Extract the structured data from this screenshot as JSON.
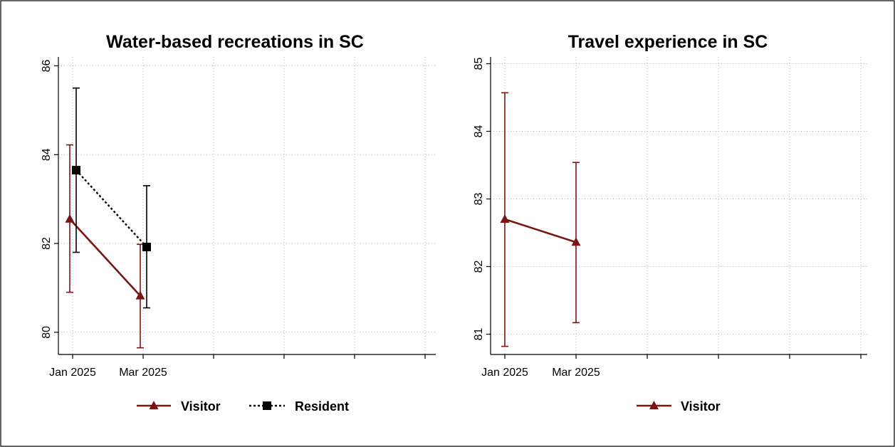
{
  "colors": {
    "visitor": "#7b1414",
    "resident": "#000000"
  },
  "chart_data": [
    {
      "type": "line",
      "title": "Water-based recreations in SC",
      "x_tick_labels": [
        "Jan 2025",
        "Mar 2025",
        "",
        "",
        "",
        ""
      ],
      "ylim": [
        79.5,
        86.2
      ],
      "y_ticks": [
        "80",
        "82",
        "84",
        "86"
      ],
      "grid": true,
      "legend_position": "bottom",
      "series": [
        {
          "name": "Visitor",
          "marker": "triangle",
          "line": "solid",
          "color": "#7b1414",
          "x": [
            "Jan 2025",
            "Mar 2025"
          ],
          "values": [
            82.55,
            80.82
          ],
          "lower": [
            80.9,
            79.65
          ],
          "upper": [
            84.22,
            81.98
          ]
        },
        {
          "name": "Resident",
          "marker": "square",
          "line": "dotted",
          "color": "#000000",
          "x": [
            "Jan 2025",
            "Mar 2025"
          ],
          "values": [
            83.65,
            81.92
          ],
          "lower": [
            81.8,
            80.55
          ],
          "upper": [
            85.5,
            83.3
          ]
        }
      ]
    },
    {
      "type": "line",
      "title": "Travel experience in SC",
      "x_tick_labels": [
        "Jan 2025",
        "Mar 2025",
        "",
        "",
        "",
        ""
      ],
      "ylim": [
        80.7,
        85.1
      ],
      "y_ticks": [
        "81",
        "82",
        "83",
        "84",
        "85"
      ],
      "grid": true,
      "legend_position": "bottom",
      "series": [
        {
          "name": "Visitor",
          "marker": "triangle",
          "line": "solid",
          "color": "#7b1414",
          "x": [
            "Jan 2025",
            "Mar 2025"
          ],
          "values": [
            82.7,
            82.36
          ],
          "lower": [
            80.82,
            81.17
          ],
          "upper": [
            84.57,
            83.54
          ]
        }
      ]
    }
  ]
}
